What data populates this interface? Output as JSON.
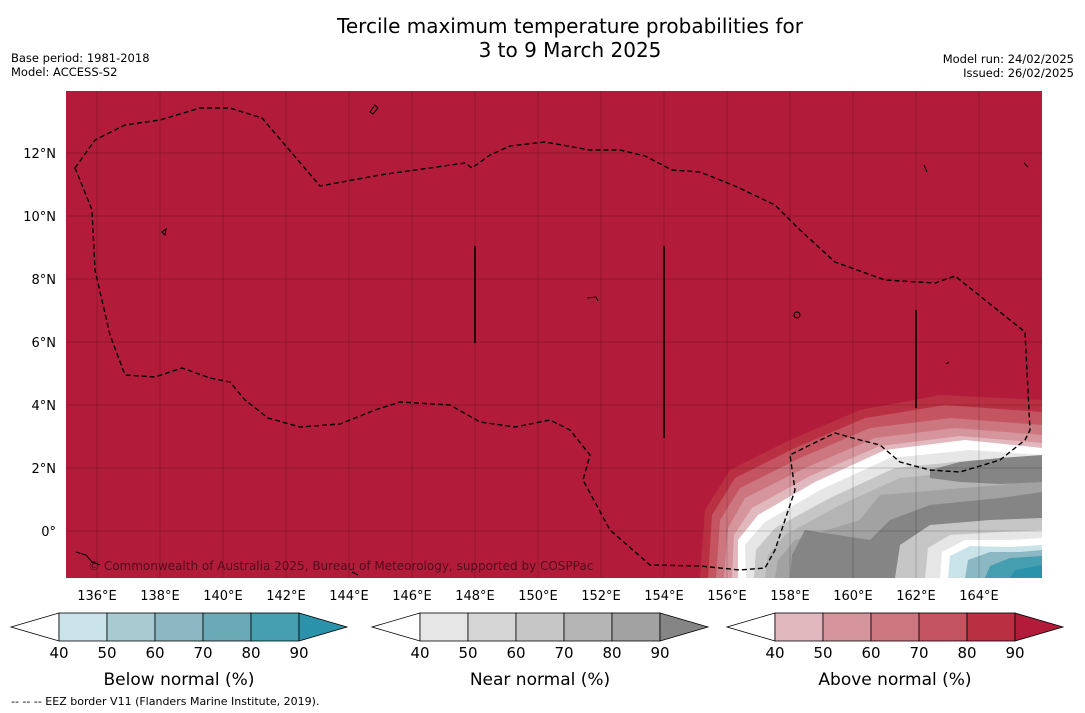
{
  "title_line1": "Tercile maximum temperature probabilities for",
  "title_line2": "3 to 9 March 2025",
  "base_period": "Base period: 1981-2018",
  "model": "Model: ACCESS-S2",
  "model_run": "Model run: 24/02/2025",
  "issued": "Issued: 26/02/2025",
  "copyright": "© Commonwealth of Australia 2025, Bureau of Meteorology, supported by COSPPac",
  "footer": "--  --  -- EEZ border V11 (Flanders Marine Institute, 2019).",
  "lon_ticks": [
    "136°E",
    "138°E",
    "140°E",
    "142°E",
    "144°E",
    "146°E",
    "148°E",
    "150°E",
    "152°E",
    "154°E",
    "156°E",
    "158°E",
    "160°E",
    "162°E",
    "164°E"
  ],
  "lat_ticks": [
    "12°N",
    "10°N",
    "8°N",
    "6°N",
    "4°N",
    "2°N",
    "0°"
  ],
  "colorbars": [
    {
      "label": "Below normal (%)",
      "ticks": [
        "40",
        "50",
        "60",
        "70",
        "80",
        "90"
      ],
      "colors": [
        "#ffffff",
        "#c9e3e9",
        "#a7cbd1",
        "#8bb8c2",
        "#6aaab7",
        "#469fb1",
        "#2a93ab"
      ]
    },
    {
      "label": "Near normal (%)",
      "ticks": [
        "40",
        "50",
        "60",
        "70",
        "80",
        "90"
      ],
      "colors": [
        "#ffffff",
        "#e6e6e6",
        "#d6d6d6",
        "#c6c6c6",
        "#b4b4b4",
        "#a2a2a2",
        "#858585"
      ]
    },
    {
      "label": "Above normal (%)",
      "ticks": [
        "40",
        "50",
        "60",
        "70",
        "80",
        "90"
      ],
      "colors": [
        "#ffffff",
        "#e1b8be",
        "#d6959c",
        "#cc7680",
        "#c4545f",
        "#b93042",
        "#b21c3a"
      ]
    }
  ],
  "map_colors": {
    "above": "#b21c3a",
    "near": "#858585",
    "below": "#469fb1"
  }
}
